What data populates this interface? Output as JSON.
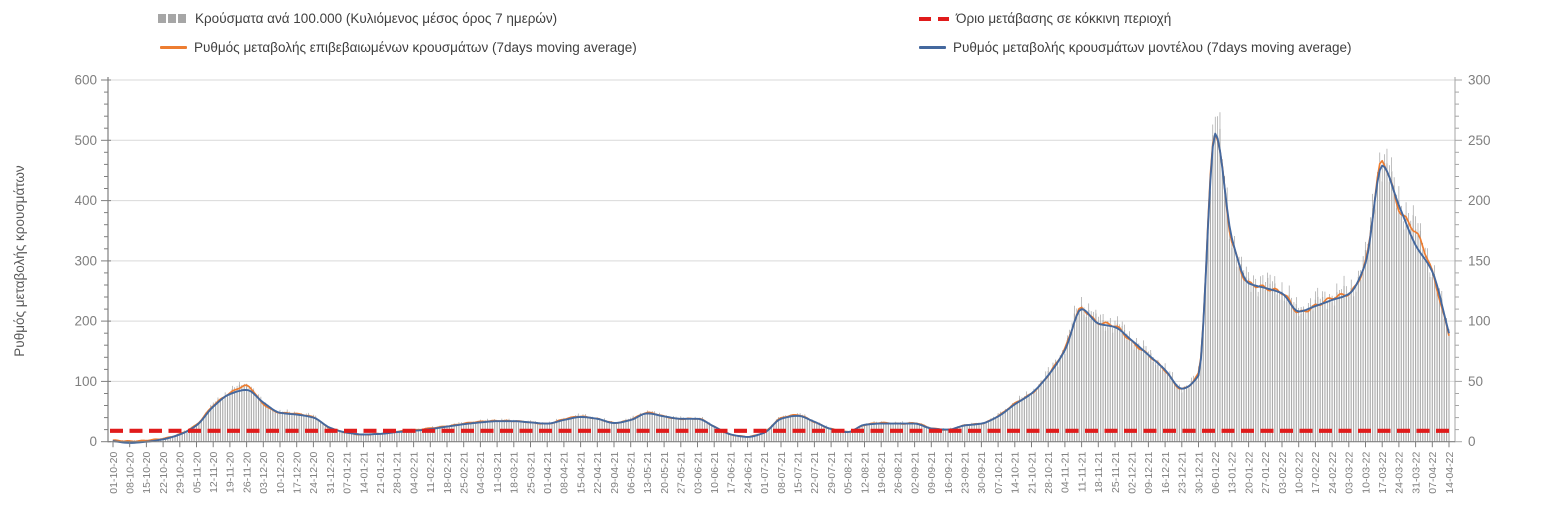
{
  "legend": {
    "items": [
      {
        "id": "cases-bars",
        "label": "Κρούσματα ανά 100.000 (Κυλιόμενος μέσος όρος 7 ημερών)",
        "color": "#a6a6a6"
      },
      {
        "id": "confirmed-line",
        "label": "Ρυθμός μεταβολής επιβεβαιωμένων κρουσμάτων (7days moving average)",
        "color": "#ed7d31"
      },
      {
        "id": "threshold-line",
        "label": "Όριο μετάβασης σε κόκκινη περιοχή",
        "color": "#e01b1b"
      },
      {
        "id": "model-line",
        "label": "Ρυθμός μεταβολής κρουσμάτων μοντέλου (7days moving average)",
        "color": "#44689e"
      }
    ]
  },
  "chart_data": {
    "type": "combo-bar-line",
    "title": "",
    "legend_position": "top",
    "grid": "horizontal",
    "axes": {
      "left": {
        "title": "Ρυθμός μεταβολής κρουσμάτων",
        "min": 0,
        "max": 600,
        "ticks": [
          0,
          100,
          200,
          300,
          400,
          500,
          600
        ]
      },
      "right": {
        "title": "",
        "min": 0,
        "max": 300,
        "ticks": [
          0,
          50,
          100,
          150,
          200,
          250,
          300
        ]
      }
    },
    "threshold": {
      "name": "Όριο μετάβασης σε κόκκινη περιοχή",
      "value_left_axis": 18,
      "style": "dashed",
      "color": "#e01b1b"
    },
    "categories": [
      "01-10-20",
      "08-10-20",
      "15-10-20",
      "22-10-20",
      "29-10-20",
      "05-11-20",
      "12-11-20",
      "19-11-20",
      "26-11-20",
      "03-12-20",
      "10-12-20",
      "17-12-20",
      "24-12-20",
      "31-12-20",
      "07-01-21",
      "14-01-21",
      "21-01-21",
      "28-01-21",
      "04-02-21",
      "11-02-21",
      "18-02-21",
      "25-02-21",
      "04-03-21",
      "11-03-21",
      "18-03-21",
      "25-03-21",
      "01-04-21",
      "08-04-21",
      "15-04-21",
      "22-04-21",
      "29-04-21",
      "06-05-21",
      "13-05-21",
      "20-05-21",
      "27-05-21",
      "03-06-21",
      "10-06-21",
      "17-06-21",
      "24-06-21",
      "01-07-21",
      "08-07-21",
      "15-07-21",
      "22-07-21",
      "29-07-21",
      "05-08-21",
      "12-08-21",
      "19-08-21",
      "26-08-21",
      "02-09-21",
      "09-09-21",
      "16-09-21",
      "23-09-21",
      "30-09-21",
      "07-10-21",
      "14-10-21",
      "21-10-21",
      "28-10-21",
      "04-11-21",
      "11-11-21",
      "18-11-21",
      "25-11-21",
      "02-12-21",
      "09-12-21",
      "16-12-21",
      "23-12-21",
      "30-12-21",
      "06-01-22",
      "13-01-22",
      "20-01-22",
      "27-01-22",
      "03-02-22",
      "10-02-22",
      "17-02-22",
      "24-02-22",
      "03-03-22",
      "10-03-22",
      "17-03-22",
      "24-03-22",
      "31-03-22",
      "07-04-22",
      "14-04-22"
    ],
    "series": [
      {
        "name": "Κρούσματα ανά 100.000 (Κυλιόμενος μέσος όρος 7 ημερών)",
        "kind": "bar",
        "axis": "right",
        "color": "#ababab",
        "values": [
          1,
          0.5,
          1,
          2.5,
          6.5,
          14,
          30,
          40.5,
          46,
          31.5,
          24,
          23,
          20.5,
          11,
          7.5,
          6,
          6.5,
          8.5,
          9.5,
          11,
          13,
          15,
          16.5,
          17.5,
          17,
          16,
          15,
          18.5,
          21,
          19,
          15.5,
          18.5,
          24,
          21,
          19,
          19,
          12.5,
          6,
          4,
          8,
          19.5,
          22,
          16.5,
          10.5,
          8,
          14,
          15.5,
          15,
          15.5,
          11,
          10,
          13.5,
          15,
          21.5,
          31.5,
          40,
          55.5,
          76.5,
          111,
          98.5,
          95.5,
          83.5,
          71.5,
          59,
          44,
          56,
          257.5,
          167,
          130.5,
          128.5,
          123.5,
          107,
          113.5,
          118.5,
          123,
          149.5,
          230.5,
          194.5,
          174,
          139.5,
          89
        ]
      },
      {
        "name": "Ρυθμός μεταβολής επιβεβαιωμένων κρουσμάτων (7days moving average)",
        "kind": "line",
        "axis": "left",
        "color": "#ed7d31",
        "values": [
          2,
          1,
          2,
          5,
          13,
          28,
          60,
          81,
          92,
          63,
          48,
          46,
          41,
          22,
          15,
          12,
          13,
          17,
          19,
          22,
          26,
          30,
          33,
          35,
          34,
          32,
          30,
          37,
          42,
          38,
          31,
          37,
          48,
          42,
          38,
          38,
          25,
          12,
          8,
          16,
          39,
          44,
          33,
          21,
          16,
          28,
          31,
          30,
          31,
          22,
          20,
          27,
          30,
          43,
          63,
          80,
          111,
          153,
          222,
          197,
          191,
          167,
          143,
          118,
          88,
          112,
          515,
          334,
          261,
          257,
          247,
          214,
          227,
          237,
          246,
          299,
          461,
          389,
          348,
          279,
          178
        ]
      },
      {
        "name": "Ρυθμός μεταβολής κρουσμάτων μοντέλου (7days moving average)",
        "kind": "line",
        "axis": "left",
        "color": "#44689e",
        "values": [
          1,
          -2,
          0,
          4,
          12,
          27,
          58,
          79,
          86,
          65,
          48,
          45,
          40,
          23,
          15,
          12,
          13,
          16,
          18,
          21,
          25,
          29,
          32,
          34,
          34,
          32,
          30,
          36,
          41,
          38,
          31,
          36,
          47,
          42,
          38,
          38,
          25,
          12,
          8,
          15,
          38,
          43,
          33,
          21,
          16,
          28,
          30,
          30,
          30,
          22,
          20,
          27,
          30,
          42,
          62,
          80,
          110,
          152,
          220,
          196,
          190,
          168,
          144,
          119,
          88,
          110,
          511,
          337,
          263,
          255,
          246,
          216,
          225,
          235,
          245,
          296,
          458,
          392,
          326,
          282,
          180
        ]
      }
    ]
  }
}
